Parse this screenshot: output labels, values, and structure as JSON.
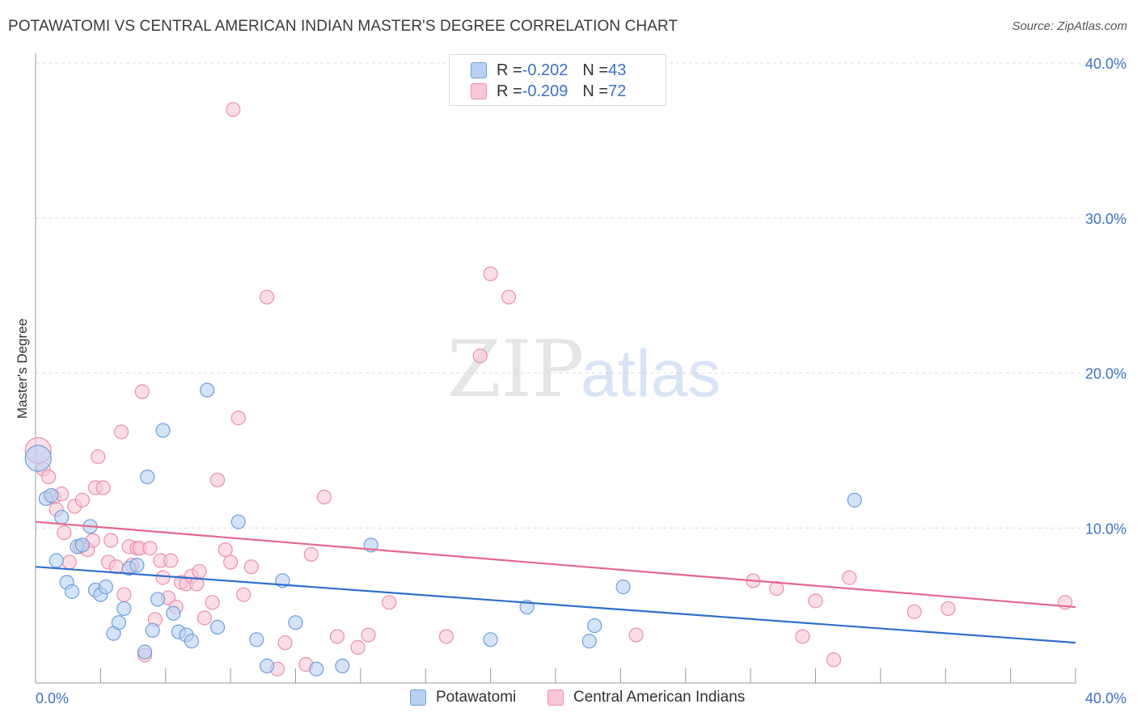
{
  "title": "POTAWATOMI VS CENTRAL AMERICAN INDIAN MASTER'S DEGREE CORRELATION CHART",
  "source": "Source: ZipAtlas.com",
  "watermark": {
    "zip": "ZIP",
    "atlas": "atlas"
  },
  "legend": {
    "rows": [
      {
        "r_label": "R = ",
        "r_value": "-0.202",
        "n_label": "N = ",
        "n_value": "43"
      },
      {
        "r_label": "R = ",
        "r_value": "-0.209",
        "n_label": "N = ",
        "n_value": "72"
      }
    ]
  },
  "colors": {
    "blue_fill": "#b8d1f3",
    "blue_stroke": "#6f9fdc",
    "blue_line": "#2e6fcc",
    "pink_fill": "#f8c6d6",
    "pink_stroke": "#ea8fae",
    "pink_line": "#e4668f",
    "axis_text": "#3b72c4",
    "grid": "#dddddd"
  },
  "chart_data": {
    "type": "scatter",
    "title": "POTAWATOMI VS CENTRAL AMERICAN INDIAN MASTER'S DEGREE CORRELATION CHART",
    "xlabel": "",
    "ylabel": "Master's Degree",
    "xlim": [
      0,
      40
    ],
    "ylim": [
      0,
      40
    ],
    "x_tick_labels": [
      "0.0%",
      "40.0%"
    ],
    "y_ticks": [
      10,
      20,
      30,
      40
    ],
    "y_tick_labels": [
      "10.0%",
      "20.0%",
      "30.0%",
      "40.0%"
    ],
    "grid": "horizontal dashed",
    "legend_position": "bottom-center",
    "series": [
      {
        "name": "Potawatomi",
        "color": "#b8d1f3",
        "r": -0.202,
        "n": 43,
        "trend": [
          [
            0,
            7.5
          ],
          [
            40,
            2.6
          ]
        ],
        "points": [
          [
            0.1,
            14.5
          ],
          [
            0.4,
            11.9
          ],
          [
            0.6,
            12.1
          ],
          [
            0.8,
            7.9
          ],
          [
            1.0,
            10.7
          ],
          [
            1.2,
            6.5
          ],
          [
            1.4,
            5.9
          ],
          [
            1.6,
            8.8
          ],
          [
            1.8,
            8.9
          ],
          [
            2.1,
            10.1
          ],
          [
            2.3,
            6.0
          ],
          [
            2.5,
            5.7
          ],
          [
            2.7,
            6.2
          ],
          [
            3.0,
            3.2
          ],
          [
            3.2,
            3.9
          ],
          [
            3.4,
            4.8
          ],
          [
            3.6,
            7.4
          ],
          [
            3.9,
            7.6
          ],
          [
            4.2,
            2.0
          ],
          [
            4.3,
            13.3
          ],
          [
            4.5,
            3.4
          ],
          [
            4.7,
            5.4
          ],
          [
            4.9,
            16.3
          ],
          [
            5.3,
            4.5
          ],
          [
            5.5,
            3.3
          ],
          [
            5.8,
            3.1
          ],
          [
            6.0,
            2.7
          ],
          [
            6.6,
            18.9
          ],
          [
            7.0,
            3.6
          ],
          [
            7.8,
            10.4
          ],
          [
            8.5,
            2.8
          ],
          [
            8.9,
            1.1
          ],
          [
            9.5,
            6.6
          ],
          [
            10.0,
            3.9
          ],
          [
            10.8,
            0.9
          ],
          [
            11.8,
            1.1
          ],
          [
            12.9,
            8.9
          ],
          [
            17.5,
            2.8
          ],
          [
            18.9,
            4.9
          ],
          [
            21.3,
            2.7
          ],
          [
            21.5,
            3.7
          ],
          [
            22.6,
            6.2
          ],
          [
            31.5,
            11.8
          ]
        ]
      },
      {
        "name": "Central American Indians",
        "color": "#f8c6d6",
        "r": -0.209,
        "n": 72,
        "trend": [
          [
            0,
            10.4
          ],
          [
            40,
            4.9
          ]
        ],
        "points": [
          [
            0.1,
            15.0
          ],
          [
            0.3,
            13.8
          ],
          [
            0.5,
            13.3
          ],
          [
            0.7,
            12.0
          ],
          [
            0.8,
            11.2
          ],
          [
            1.0,
            12.2
          ],
          [
            1.1,
            9.7
          ],
          [
            1.3,
            7.8
          ],
          [
            1.5,
            11.4
          ],
          [
            1.7,
            8.8
          ],
          [
            1.8,
            11.8
          ],
          [
            2.0,
            8.6
          ],
          [
            2.2,
            9.2
          ],
          [
            2.3,
            12.6
          ],
          [
            2.4,
            14.6
          ],
          [
            2.6,
            12.6
          ],
          [
            2.8,
            7.8
          ],
          [
            2.9,
            9.2
          ],
          [
            3.1,
            7.5
          ],
          [
            3.3,
            16.2
          ],
          [
            3.4,
            5.7
          ],
          [
            3.6,
            8.8
          ],
          [
            3.7,
            7.6
          ],
          [
            3.9,
            8.7
          ],
          [
            4.0,
            8.7
          ],
          [
            4.1,
            18.8
          ],
          [
            4.2,
            1.8
          ],
          [
            4.4,
            8.7
          ],
          [
            4.6,
            4.1
          ],
          [
            4.8,
            7.9
          ],
          [
            4.9,
            6.8
          ],
          [
            5.1,
            5.5
          ],
          [
            5.2,
            7.9
          ],
          [
            5.4,
            4.9
          ],
          [
            5.6,
            6.5
          ],
          [
            5.8,
            6.4
          ],
          [
            6.0,
            6.9
          ],
          [
            6.2,
            6.4
          ],
          [
            6.3,
            7.2
          ],
          [
            6.5,
            4.2
          ],
          [
            6.8,
            5.2
          ],
          [
            7.0,
            13.1
          ],
          [
            7.3,
            8.6
          ],
          [
            7.5,
            7.8
          ],
          [
            7.6,
            37.0
          ],
          [
            7.8,
            17.1
          ],
          [
            8.0,
            5.7
          ],
          [
            8.3,
            7.5
          ],
          [
            8.9,
            24.9
          ],
          [
            9.3,
            0.9
          ],
          [
            9.6,
            2.6
          ],
          [
            10.4,
            1.2
          ],
          [
            10.6,
            8.3
          ],
          [
            11.1,
            12.0
          ],
          [
            11.6,
            3.0
          ],
          [
            12.4,
            2.3
          ],
          [
            12.8,
            3.1
          ],
          [
            13.6,
            5.2
          ],
          [
            15.8,
            3.0
          ],
          [
            17.1,
            21.1
          ],
          [
            17.5,
            26.4
          ],
          [
            18.2,
            24.9
          ],
          [
            23.1,
            3.1
          ],
          [
            27.6,
            6.6
          ],
          [
            28.5,
            6.1
          ],
          [
            29.5,
            3.0
          ],
          [
            30.0,
            5.3
          ],
          [
            30.7,
            1.5
          ],
          [
            31.3,
            6.8
          ],
          [
            33.8,
            4.6
          ],
          [
            35.1,
            4.8
          ],
          [
            39.6,
            5.2
          ]
        ]
      }
    ]
  }
}
